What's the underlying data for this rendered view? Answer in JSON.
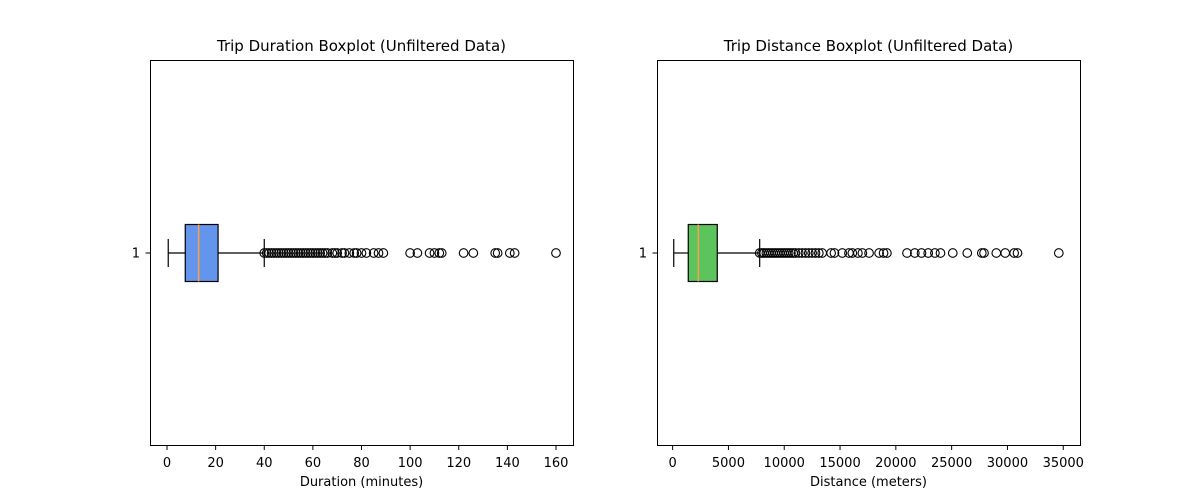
{
  "chart_data": [
    {
      "type": "boxplot",
      "orientation": "horizontal",
      "title": "Trip Duration Boxplot (Unfiltered Data)",
      "xlabel": "Duration (minutes)",
      "ylabel": "",
      "xlim": [
        -7,
        167
      ],
      "xticks": [
        0,
        20,
        40,
        60,
        80,
        100,
        120,
        140,
        160
      ],
      "xtick_labels": [
        "0",
        "20",
        "40",
        "60",
        "80",
        "100",
        "120",
        "140",
        "160"
      ],
      "ytick_labels": [
        "1"
      ],
      "box_color": "#6495ed",
      "median_color": "#f5a04a",
      "grid": false,
      "series": [
        {
          "min": 0.5,
          "q1": 7.5,
          "median": 13,
          "q3": 21,
          "max": 40,
          "outliers": [
            40,
            41,
            42,
            43,
            44,
            45,
            46,
            47,
            48,
            49,
            50,
            51,
            52,
            53,
            54,
            55,
            56,
            57,
            58,
            59,
            60,
            61,
            62,
            63,
            64,
            65,
            66,
            68,
            69,
            70,
            72,
            73,
            75,
            77,
            78,
            80,
            82,
            85,
            87,
            89,
            100,
            103,
            108,
            110,
            112,
            113,
            122,
            126,
            135,
            136,
            141,
            143,
            160
          ]
        }
      ]
    },
    {
      "type": "boxplot",
      "orientation": "horizontal",
      "title": "Trip Distance Boxplot (Unfiltered Data)",
      "xlabel": "Distance (meters)",
      "ylabel": "",
      "xlim": [
        -1400,
        36500
      ],
      "xticks": [
        0,
        5000,
        10000,
        15000,
        20000,
        25000,
        30000,
        35000
      ],
      "xtick_labels": [
        "0",
        "5000",
        "10000",
        "15000",
        "20000",
        "25000",
        "30000",
        "35000"
      ],
      "ytick_labels": [
        "1"
      ],
      "box_color": "#5cc45c",
      "median_color": "#f5a04a",
      "grid": false,
      "series": [
        {
          "min": 100,
          "q1": 1400,
          "median": 2300,
          "q3": 4000,
          "max": 7800,
          "outliers": [
            7800,
            8000,
            8200,
            8400,
            8600,
            8800,
            9000,
            9200,
            9400,
            9600,
            9800,
            10000,
            10200,
            10400,
            10600,
            10800,
            11000,
            11300,
            11600,
            11900,
            12200,
            12500,
            12800,
            13100,
            13400,
            14200,
            14500,
            15200,
            15800,
            16100,
            16600,
            17000,
            17600,
            18500,
            18900,
            19200,
            21000,
            21700,
            22300,
            22900,
            23500,
            24000,
            25100,
            26400,
            27700,
            27900,
            29000,
            29800,
            30600,
            30900,
            34600
          ]
        }
      ]
    }
  ]
}
